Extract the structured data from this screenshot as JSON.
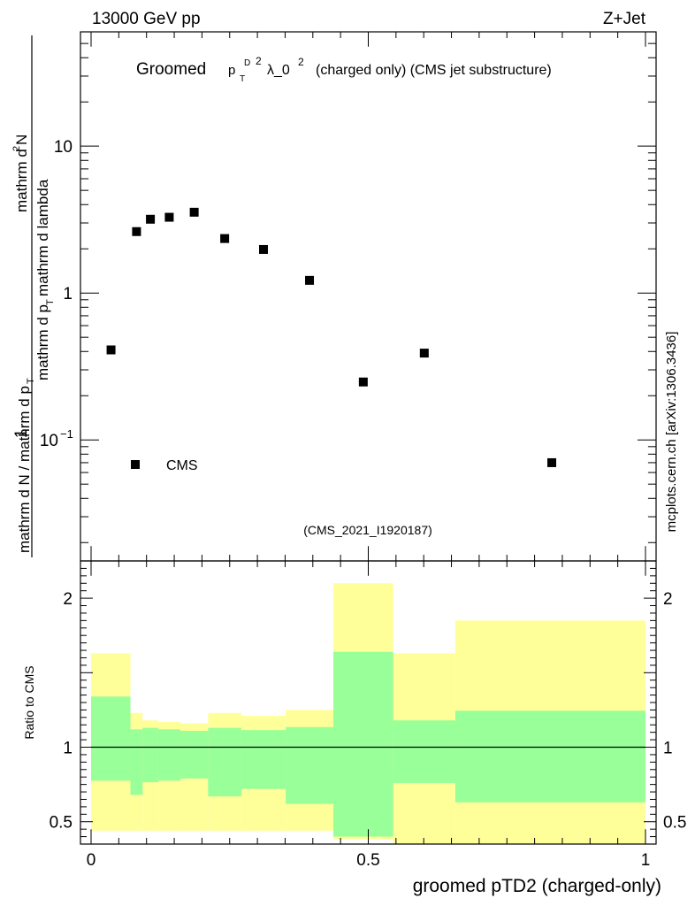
{
  "chart_data": {
    "type": "scatter",
    "header_left": "13000 GeV pp",
    "header_right": "Z+Jet",
    "title": {
      "prefix": "Groomed",
      "sym_p": "p",
      "sym_sup": "D",
      "sym_sub": "T",
      "sym_exp": "2",
      "lambda_text": "λ_0",
      "lambda_exp": "2",
      "suffix": "(charged only) (CMS jet substructure)"
    },
    "ylabel_top": {
      "numerator": "1",
      "denominator": "mathrm d N / mathrm d p",
      "denominator_sub": "T",
      "num_right": "mathrm d",
      "num_right_sup": "2",
      "num_right_tail": "N",
      "den_right": "mathrm d p",
      "den_right_sub": "T",
      "den_right_tail": "mathrm d lambda"
    },
    "ylabel_bottom": "Ratio to CMS",
    "xlabel": "groomed pTD2 (charged-only)",
    "analysis_id": "(CMS_2021_I1920187)",
    "side_text": "mcplots.cern.ch [arXiv:1306.3436]",
    "legend": {
      "label": "CMS",
      "position": "bottom-left"
    },
    "x_range": [
      0,
      1
    ],
    "y_log_range": [
      0.015,
      60
    ],
    "ratio_range": [
      0.35,
      2.25
    ],
    "y_ticks": [
      {
        "v": 10,
        "label": "10"
      },
      {
        "v": 1,
        "label": "1"
      },
      {
        "v": 0.1,
        "label": "10",
        "sup": "−1"
      }
    ],
    "ratio_ticks": [
      {
        "v": 2,
        "label": "2"
      },
      {
        "v": 1,
        "label": "1"
      },
      {
        "v": 0.5,
        "label": "0.5"
      }
    ],
    "x_ticks": [
      {
        "v": 0,
        "label": "0"
      },
      {
        "v": 0.5,
        "label": "0.5"
      },
      {
        "v": 1,
        "label": "1"
      }
    ],
    "series": [
      {
        "name": "CMS",
        "x": [
          0.036,
          0.082,
          0.107,
          0.141,
          0.186,
          0.241,
          0.311,
          0.394,
          0.491,
          0.601,
          0.831
        ],
        "values": [
          0.41,
          2.62,
          3.18,
          3.28,
          3.55,
          2.35,
          1.98,
          1.22,
          0.248,
          0.39,
          0.07
        ]
      }
    ],
    "ratio_bands": [
      {
        "x0": 0.0,
        "x1": 0.071,
        "inner": [
          0.775,
          1.34
        ],
        "outer": [
          0.44,
          1.63
        ]
      },
      {
        "x0": 0.071,
        "x1": 0.093,
        "inner": [
          0.68,
          1.12
        ],
        "outer": [
          0.44,
          1.23
        ]
      },
      {
        "x0": 0.093,
        "x1": 0.121,
        "inner": [
          0.765,
          1.13
        ],
        "outer": [
          0.44,
          1.18
        ]
      },
      {
        "x0": 0.121,
        "x1": 0.161,
        "inner": [
          0.775,
          1.12
        ],
        "outer": [
          0.44,
          1.17
        ]
      },
      {
        "x0": 0.161,
        "x1": 0.211,
        "inner": [
          0.79,
          1.11
        ],
        "outer": [
          0.44,
          1.16
        ]
      },
      {
        "x0": 0.211,
        "x1": 0.271,
        "inner": [
          0.67,
          1.13
        ],
        "outer": [
          0.44,
          1.23
        ]
      },
      {
        "x0": 0.271,
        "x1": 0.351,
        "inner": [
          0.72,
          1.115
        ],
        "outer": [
          0.44,
          1.21
        ]
      },
      {
        "x0": 0.351,
        "x1": 0.437,
        "inner": [
          0.62,
          1.135
        ],
        "outer": [
          0.44,
          1.25
        ]
      },
      {
        "x0": 0.437,
        "x1": 0.545,
        "inner": [
          0.4,
          1.64
        ],
        "outer": [
          0.38,
          2.1
        ]
      },
      {
        "x0": 0.545,
        "x1": 0.657,
        "inner": [
          0.76,
          1.18
        ],
        "outer": [
          0.35,
          1.63
        ]
      },
      {
        "x0": 0.657,
        "x1": 1.0,
        "inner": [
          0.63,
          1.245
        ],
        "outer": [
          0.35,
          1.85
        ]
      }
    ],
    "colors": {
      "inner_band": "#99ff99",
      "outer_band": "#ffff99",
      "marker": "#000000",
      "analysis_id": "#999999",
      "side_text": "#666666"
    }
  }
}
